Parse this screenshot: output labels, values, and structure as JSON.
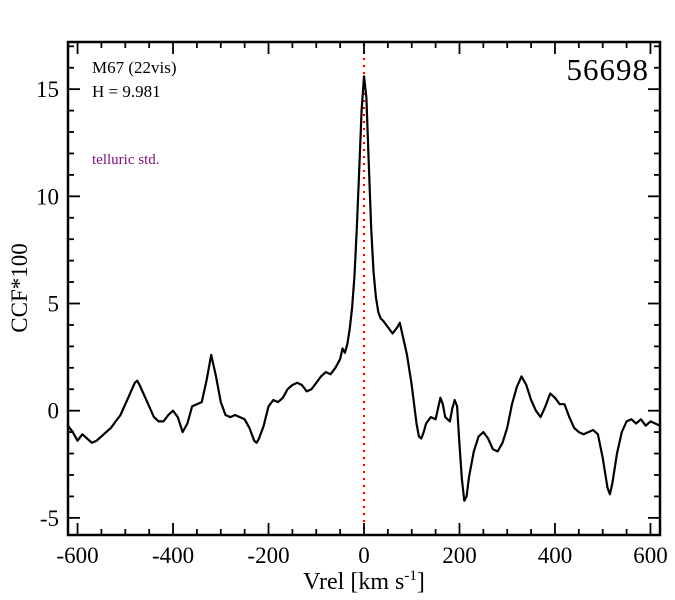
{
  "figure": {
    "background": "#ffffff",
    "frame_color": "#000000",
    "curve_color": "#000000",
    "vline_color": "#ff0000",
    "telluric_color": "#7d0f7d"
  },
  "annotations": {
    "cluster": "M67 (22vis)",
    "hmag": "H = 9.981",
    "telluric": "telluric std.",
    "star_id": "56698"
  },
  "axis": {
    "xlabel_pre": "Vrel [km s",
    "xlabel_sup": "-1",
    "xlabel_post": "]",
    "ylabel": "CCF*100"
  },
  "chart_data": {
    "type": "line",
    "title": "56698",
    "subtitle": "M67 (22vis), H = 9.981, telluric std.",
    "xlabel": "Vrel [km s^-1]",
    "ylabel": "CCF*100",
    "xlim": [
      -620,
      620
    ],
    "ylim": [
      -5.8,
      17.2
    ],
    "x_ticks": [
      -600,
      -400,
      -200,
      0,
      200,
      400,
      600
    ],
    "y_ticks": [
      -5,
      0,
      5,
      10,
      15
    ],
    "x_minor_step": 50,
    "y_minor_step": 1,
    "grid": false,
    "legend": false,
    "vline_x": 0,
    "peak": {
      "x": 0,
      "y": 15.6
    },
    "points": [
      [
        -620,
        -0.7
      ],
      [
        -610,
        -1.0
      ],
      [
        -600,
        -1.4
      ],
      [
        -590,
        -1.1
      ],
      [
        -580,
        -1.3
      ],
      [
        -570,
        -1.5
      ],
      [
        -560,
        -1.4
      ],
      [
        -550,
        -1.2
      ],
      [
        -540,
        -1.0
      ],
      [
        -530,
        -0.8
      ],
      [
        -520,
        -0.5
      ],
      [
        -510,
        -0.2
      ],
      [
        -500,
        0.3
      ],
      [
        -490,
        0.8
      ],
      [
        -480,
        1.3
      ],
      [
        -475,
        1.4
      ],
      [
        -470,
        1.2
      ],
      [
        -460,
        0.7
      ],
      [
        -450,
        0.2
      ],
      [
        -440,
        -0.3
      ],
      [
        -430,
        -0.5
      ],
      [
        -420,
        -0.5
      ],
      [
        -410,
        -0.2
      ],
      [
        -400,
        0.0
      ],
      [
        -390,
        -0.3
      ],
      [
        -380,
        -1.0
      ],
      [
        -370,
        -0.6
      ],
      [
        -360,
        0.2
      ],
      [
        -350,
        0.3
      ],
      [
        -340,
        0.4
      ],
      [
        -330,
        1.4
      ],
      [
        -320,
        2.6
      ],
      [
        -310,
        1.6
      ],
      [
        -300,
        0.4
      ],
      [
        -290,
        -0.2
      ],
      [
        -280,
        -0.3
      ],
      [
        -270,
        -0.2
      ],
      [
        -260,
        -0.3
      ],
      [
        -250,
        -0.4
      ],
      [
        -240,
        -0.8
      ],
      [
        -230,
        -1.4
      ],
      [
        -225,
        -1.5
      ],
      [
        -220,
        -1.3
      ],
      [
        -210,
        -0.7
      ],
      [
        -200,
        0.2
      ],
      [
        -190,
        0.5
      ],
      [
        -180,
        0.4
      ],
      [
        -170,
        0.6
      ],
      [
        -160,
        1.0
      ],
      [
        -150,
        1.2
      ],
      [
        -140,
        1.3
      ],
      [
        -130,
        1.2
      ],
      [
        -120,
        0.9
      ],
      [
        -110,
        1.0
      ],
      [
        -100,
        1.3
      ],
      [
        -90,
        1.6
      ],
      [
        -80,
        1.8
      ],
      [
        -70,
        1.7
      ],
      [
        -60,
        2.0
      ],
      [
        -50,
        2.4
      ],
      [
        -45,
        2.9
      ],
      [
        -40,
        2.7
      ],
      [
        -35,
        3.1
      ],
      [
        -30,
        3.8
      ],
      [
        -25,
        4.8
      ],
      [
        -20,
        6.3
      ],
      [
        -15,
        8.5
      ],
      [
        -10,
        11.2
      ],
      [
        -5,
        14.0
      ],
      [
        0,
        15.6
      ],
      [
        5,
        14.6
      ],
      [
        10,
        11.5
      ],
      [
        15,
        8.5
      ],
      [
        20,
        6.5
      ],
      [
        25,
        5.3
      ],
      [
        30,
        4.6
      ],
      [
        35,
        4.3
      ],
      [
        40,
        4.2
      ],
      [
        50,
        3.9
      ],
      [
        60,
        3.6
      ],
      [
        70,
        3.9
      ],
      [
        75,
        4.1
      ],
      [
        80,
        3.6
      ],
      [
        90,
        2.6
      ],
      [
        100,
        1.2
      ],
      [
        110,
        -0.6
      ],
      [
        115,
        -1.2
      ],
      [
        120,
        -1.3
      ],
      [
        125,
        -1.0
      ],
      [
        130,
        -0.6
      ],
      [
        140,
        -0.3
      ],
      [
        150,
        -0.4
      ],
      [
        155,
        0.1
      ],
      [
        160,
        0.6
      ],
      [
        165,
        0.3
      ],
      [
        170,
        -0.3
      ],
      [
        180,
        -0.5
      ],
      [
        185,
        0.1
      ],
      [
        190,
        0.5
      ],
      [
        195,
        0.2
      ],
      [
        200,
        -1.6
      ],
      [
        205,
        -3.2
      ],
      [
        210,
        -4.2
      ],
      [
        215,
        -4.0
      ],
      [
        220,
        -3.1
      ],
      [
        230,
        -1.9
      ],
      [
        240,
        -1.2
      ],
      [
        250,
        -1.0
      ],
      [
        260,
        -1.3
      ],
      [
        270,
        -1.8
      ],
      [
        280,
        -1.9
      ],
      [
        290,
        -1.5
      ],
      [
        300,
        -0.8
      ],
      [
        310,
        0.3
      ],
      [
        320,
        1.1
      ],
      [
        330,
        1.6
      ],
      [
        340,
        1.2
      ],
      [
        350,
        0.5
      ],
      [
        360,
        0.0
      ],
      [
        370,
        -0.3
      ],
      [
        380,
        0.2
      ],
      [
        390,
        0.8
      ],
      [
        400,
        0.6
      ],
      [
        410,
        0.3
      ],
      [
        420,
        0.3
      ],
      [
        430,
        -0.3
      ],
      [
        440,
        -0.8
      ],
      [
        450,
        -1.0
      ],
      [
        460,
        -1.1
      ],
      [
        470,
        -1.0
      ],
      [
        480,
        -0.9
      ],
      [
        490,
        -1.1
      ],
      [
        500,
        -2.2
      ],
      [
        510,
        -3.6
      ],
      [
        515,
        -3.9
      ],
      [
        520,
        -3.4
      ],
      [
        530,
        -2.0
      ],
      [
        540,
        -1.0
      ],
      [
        550,
        -0.5
      ],
      [
        560,
        -0.4
      ],
      [
        570,
        -0.6
      ],
      [
        580,
        -0.4
      ],
      [
        590,
        -0.7
      ],
      [
        600,
        -0.5
      ],
      [
        610,
        -0.6
      ],
      [
        620,
        -0.7
      ]
    ]
  }
}
